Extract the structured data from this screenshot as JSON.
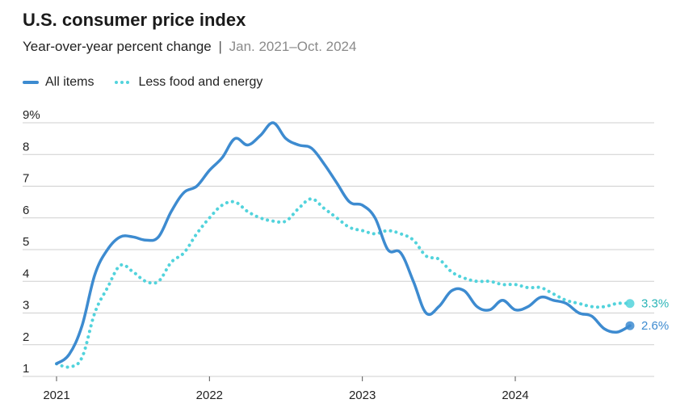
{
  "chart_data": {
    "type": "line",
    "title": "U.S. consumer price index",
    "subtitle": "Year-over-year percent change",
    "subtitle_range": "Jan. 2021–Oct. 2024",
    "subtitle_separator": "|",
    "ylim": [
      1,
      9
    ],
    "y_ticks": [
      1,
      2,
      3,
      4,
      5,
      6,
      7,
      8,
      9
    ],
    "y_tick_labels": [
      "1",
      "2",
      "3",
      "4",
      "5",
      "6",
      "7",
      "8",
      "9%"
    ],
    "x_ticks": [
      "2021",
      "2022",
      "2023",
      "2024"
    ],
    "x": [
      "2021-01",
      "2021-02",
      "2021-03",
      "2021-04",
      "2021-05",
      "2021-06",
      "2021-07",
      "2021-08",
      "2021-09",
      "2021-10",
      "2021-11",
      "2021-12",
      "2022-01",
      "2022-02",
      "2022-03",
      "2022-04",
      "2022-05",
      "2022-06",
      "2022-07",
      "2022-08",
      "2022-09",
      "2022-10",
      "2022-11",
      "2022-12",
      "2023-01",
      "2023-02",
      "2023-03",
      "2023-04",
      "2023-05",
      "2023-06",
      "2023-07",
      "2023-08",
      "2023-09",
      "2023-10",
      "2023-11",
      "2023-12",
      "2024-01",
      "2024-02",
      "2024-03",
      "2024-04",
      "2024-05",
      "2024-06",
      "2024-07",
      "2024-08",
      "2024-09",
      "2024-10"
    ],
    "grid": true,
    "legend_position": "top-left",
    "series": [
      {
        "name": "All items",
        "style": "solid",
        "color": "#3d8bd0",
        "values": [
          1.4,
          1.7,
          2.6,
          4.2,
          5.0,
          5.4,
          5.4,
          5.3,
          5.4,
          6.2,
          6.8,
          7.0,
          7.5,
          7.9,
          8.5,
          8.3,
          8.6,
          9.0,
          8.5,
          8.3,
          8.2,
          7.7,
          7.1,
          6.5,
          6.4,
          6.0,
          5.0,
          4.9,
          4.0,
          3.0,
          3.2,
          3.7,
          3.7,
          3.2,
          3.1,
          3.4,
          3.1,
          3.2,
          3.5,
          3.4,
          3.3,
          3.0,
          2.9,
          2.5,
          2.4,
          2.6
        ],
        "end_label": "2.6%"
      },
      {
        "name": "Less food and energy",
        "style": "dotted",
        "color": "#52d3dc",
        "values": [
          1.4,
          1.3,
          1.6,
          3.0,
          3.8,
          4.5,
          4.3,
          4.0,
          4.0,
          4.6,
          4.9,
          5.5,
          6.0,
          6.4,
          6.5,
          6.2,
          6.0,
          5.9,
          5.9,
          6.3,
          6.6,
          6.3,
          6.0,
          5.7,
          5.6,
          5.5,
          5.6,
          5.5,
          5.3,
          4.8,
          4.7,
          4.3,
          4.1,
          4.0,
          4.0,
          3.9,
          3.9,
          3.8,
          3.8,
          3.6,
          3.4,
          3.3,
          3.2,
          3.2,
          3.3,
          3.3
        ],
        "end_label": "3.3%"
      }
    ]
  },
  "colors": {
    "all_items_line": "#3d8bd0",
    "all_items_label": "#3d8bd0",
    "core_line": "#52d3dc",
    "core_label": "#2bb5b8",
    "grid": "#cfcfcf"
  }
}
